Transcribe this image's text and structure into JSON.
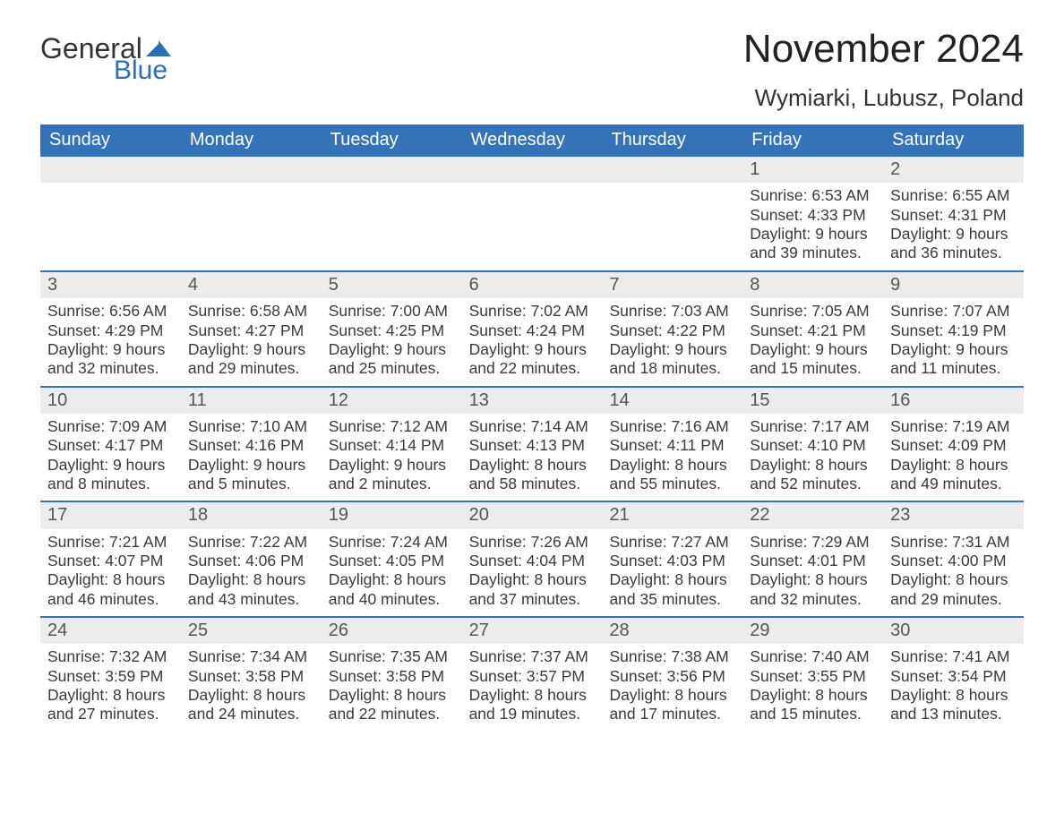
{
  "logo": {
    "text1": "General",
    "text2": "Blue",
    "flag_color": "#2c6fb6"
  },
  "title": "November 2024",
  "location": "Wymiarki, Lubusz, Poland",
  "colors": {
    "header_bg": "#3573b9",
    "header_text": "#ffffff",
    "daynum_bg": "#ececec",
    "row_border": "#3573b9",
    "body_text": "#3a3a3a",
    "page_bg": "#ffffff"
  },
  "typography": {
    "title_fontsize": 44,
    "location_fontsize": 26,
    "header_fontsize": 20,
    "cell_fontsize": 17.5,
    "daynum_fontsize": 20
  },
  "day_headers": [
    "Sunday",
    "Monday",
    "Tuesday",
    "Wednesday",
    "Thursday",
    "Friday",
    "Saturday"
  ],
  "weeks": [
    [
      {
        "empty": true
      },
      {
        "empty": true
      },
      {
        "empty": true
      },
      {
        "empty": true
      },
      {
        "empty": true
      },
      {
        "n": "1",
        "sunrise": "Sunrise: 6:53 AM",
        "sunset": "Sunset: 4:33 PM",
        "dl1": "Daylight: 9 hours",
        "dl2": "and 39 minutes."
      },
      {
        "n": "2",
        "sunrise": "Sunrise: 6:55 AM",
        "sunset": "Sunset: 4:31 PM",
        "dl1": "Daylight: 9 hours",
        "dl2": "and 36 minutes."
      }
    ],
    [
      {
        "n": "3",
        "sunrise": "Sunrise: 6:56 AM",
        "sunset": "Sunset: 4:29 PM",
        "dl1": "Daylight: 9 hours",
        "dl2": "and 32 minutes."
      },
      {
        "n": "4",
        "sunrise": "Sunrise: 6:58 AM",
        "sunset": "Sunset: 4:27 PM",
        "dl1": "Daylight: 9 hours",
        "dl2": "and 29 minutes."
      },
      {
        "n": "5",
        "sunrise": "Sunrise: 7:00 AM",
        "sunset": "Sunset: 4:25 PM",
        "dl1": "Daylight: 9 hours",
        "dl2": "and 25 minutes."
      },
      {
        "n": "6",
        "sunrise": "Sunrise: 7:02 AM",
        "sunset": "Sunset: 4:24 PM",
        "dl1": "Daylight: 9 hours",
        "dl2": "and 22 minutes."
      },
      {
        "n": "7",
        "sunrise": "Sunrise: 7:03 AM",
        "sunset": "Sunset: 4:22 PM",
        "dl1": "Daylight: 9 hours",
        "dl2": "and 18 minutes."
      },
      {
        "n": "8",
        "sunrise": "Sunrise: 7:05 AM",
        "sunset": "Sunset: 4:21 PM",
        "dl1": "Daylight: 9 hours",
        "dl2": "and 15 minutes."
      },
      {
        "n": "9",
        "sunrise": "Sunrise: 7:07 AM",
        "sunset": "Sunset: 4:19 PM",
        "dl1": "Daylight: 9 hours",
        "dl2": "and 11 minutes."
      }
    ],
    [
      {
        "n": "10",
        "sunrise": "Sunrise: 7:09 AM",
        "sunset": "Sunset: 4:17 PM",
        "dl1": "Daylight: 9 hours",
        "dl2": "and 8 minutes."
      },
      {
        "n": "11",
        "sunrise": "Sunrise: 7:10 AM",
        "sunset": "Sunset: 4:16 PM",
        "dl1": "Daylight: 9 hours",
        "dl2": "and 5 minutes."
      },
      {
        "n": "12",
        "sunrise": "Sunrise: 7:12 AM",
        "sunset": "Sunset: 4:14 PM",
        "dl1": "Daylight: 9 hours",
        "dl2": "and 2 minutes."
      },
      {
        "n": "13",
        "sunrise": "Sunrise: 7:14 AM",
        "sunset": "Sunset: 4:13 PM",
        "dl1": "Daylight: 8 hours",
        "dl2": "and 58 minutes."
      },
      {
        "n": "14",
        "sunrise": "Sunrise: 7:16 AM",
        "sunset": "Sunset: 4:11 PM",
        "dl1": "Daylight: 8 hours",
        "dl2": "and 55 minutes."
      },
      {
        "n": "15",
        "sunrise": "Sunrise: 7:17 AM",
        "sunset": "Sunset: 4:10 PM",
        "dl1": "Daylight: 8 hours",
        "dl2": "and 52 minutes."
      },
      {
        "n": "16",
        "sunrise": "Sunrise: 7:19 AM",
        "sunset": "Sunset: 4:09 PM",
        "dl1": "Daylight: 8 hours",
        "dl2": "and 49 minutes."
      }
    ],
    [
      {
        "n": "17",
        "sunrise": "Sunrise: 7:21 AM",
        "sunset": "Sunset: 4:07 PM",
        "dl1": "Daylight: 8 hours",
        "dl2": "and 46 minutes."
      },
      {
        "n": "18",
        "sunrise": "Sunrise: 7:22 AM",
        "sunset": "Sunset: 4:06 PM",
        "dl1": "Daylight: 8 hours",
        "dl2": "and 43 minutes."
      },
      {
        "n": "19",
        "sunrise": "Sunrise: 7:24 AM",
        "sunset": "Sunset: 4:05 PM",
        "dl1": "Daylight: 8 hours",
        "dl2": "and 40 minutes."
      },
      {
        "n": "20",
        "sunrise": "Sunrise: 7:26 AM",
        "sunset": "Sunset: 4:04 PM",
        "dl1": "Daylight: 8 hours",
        "dl2": "and 37 minutes."
      },
      {
        "n": "21",
        "sunrise": "Sunrise: 7:27 AM",
        "sunset": "Sunset: 4:03 PM",
        "dl1": "Daylight: 8 hours",
        "dl2": "and 35 minutes."
      },
      {
        "n": "22",
        "sunrise": "Sunrise: 7:29 AM",
        "sunset": "Sunset: 4:01 PM",
        "dl1": "Daylight: 8 hours",
        "dl2": "and 32 minutes."
      },
      {
        "n": "23",
        "sunrise": "Sunrise: 7:31 AM",
        "sunset": "Sunset: 4:00 PM",
        "dl1": "Daylight: 8 hours",
        "dl2": "and 29 minutes."
      }
    ],
    [
      {
        "n": "24",
        "sunrise": "Sunrise: 7:32 AM",
        "sunset": "Sunset: 3:59 PM",
        "dl1": "Daylight: 8 hours",
        "dl2": "and 27 minutes."
      },
      {
        "n": "25",
        "sunrise": "Sunrise: 7:34 AM",
        "sunset": "Sunset: 3:58 PM",
        "dl1": "Daylight: 8 hours",
        "dl2": "and 24 minutes."
      },
      {
        "n": "26",
        "sunrise": "Sunrise: 7:35 AM",
        "sunset": "Sunset: 3:58 PM",
        "dl1": "Daylight: 8 hours",
        "dl2": "and 22 minutes."
      },
      {
        "n": "27",
        "sunrise": "Sunrise: 7:37 AM",
        "sunset": "Sunset: 3:57 PM",
        "dl1": "Daylight: 8 hours",
        "dl2": "and 19 minutes."
      },
      {
        "n": "28",
        "sunrise": "Sunrise: 7:38 AM",
        "sunset": "Sunset: 3:56 PM",
        "dl1": "Daylight: 8 hours",
        "dl2": "and 17 minutes."
      },
      {
        "n": "29",
        "sunrise": "Sunrise: 7:40 AM",
        "sunset": "Sunset: 3:55 PM",
        "dl1": "Daylight: 8 hours",
        "dl2": "and 15 minutes."
      },
      {
        "n": "30",
        "sunrise": "Sunrise: 7:41 AM",
        "sunset": "Sunset: 3:54 PM",
        "dl1": "Daylight: 8 hours",
        "dl2": "and 13 minutes."
      }
    ]
  ]
}
